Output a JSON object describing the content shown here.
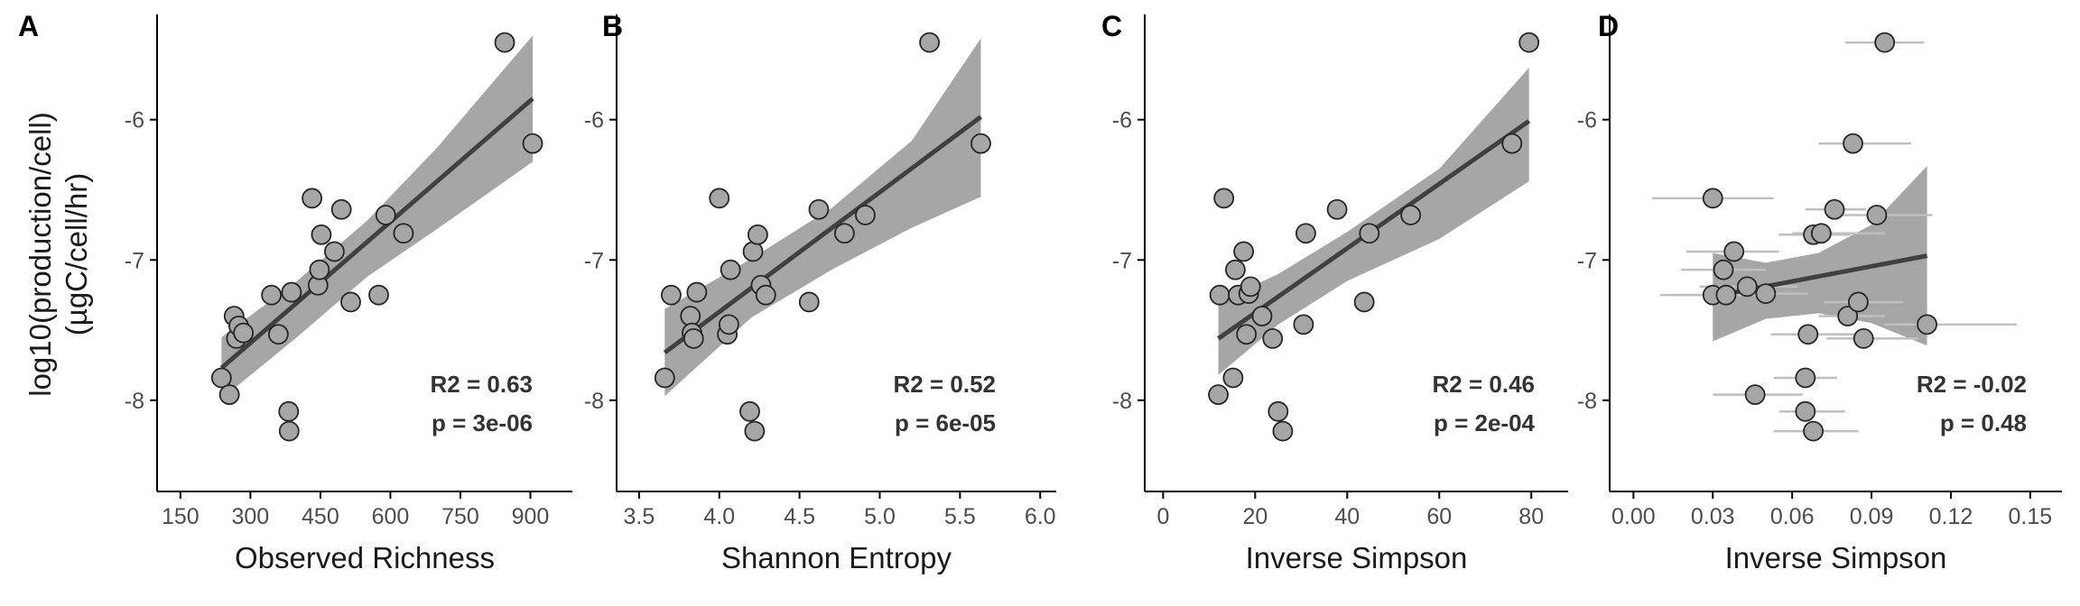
{
  "figure": {
    "ylabel_line1": "log10(production/cell)",
    "ylabel_line2": "(µgC/cell/hr)"
  },
  "colors": {
    "point_fill": "#a6a6a6",
    "point_stroke": "#262626",
    "fit_line": "#404040",
    "ci_band": "#a6a6a6",
    "error_bar": "#bfbfbf",
    "axis": "#000000"
  },
  "chart_data": [
    {
      "type": "scatter",
      "panel": "A",
      "xlabel": "Observed Richness",
      "ylabel": "log10(production/cell) (µgC/cell/hr)",
      "xlim": [
        100,
        990
      ],
      "ylim": [
        -8.65,
        -5.25
      ],
      "xticks": [
        150,
        300,
        450,
        600,
        750,
        900
      ],
      "xtick_labels": [
        "150",
        "300",
        "450",
        "600",
        "750",
        "900"
      ],
      "yticks": [
        -8,
        -7,
        -6
      ],
      "ytick_labels": [
        "-8",
        "-7",
        "-6"
      ],
      "points": [
        {
          "x": 238,
          "y": -7.84
        },
        {
          "x": 255,
          "y": -7.96
        },
        {
          "x": 265,
          "y": -7.4
        },
        {
          "x": 270,
          "y": -7.56
        },
        {
          "x": 275,
          "y": -7.47
        },
        {
          "x": 285,
          "y": -7.52
        },
        {
          "x": 345,
          "y": -7.25
        },
        {
          "x": 360,
          "y": -7.53
        },
        {
          "x": 382,
          "y": -8.08
        },
        {
          "x": 383,
          "y": -8.22
        },
        {
          "x": 388,
          "y": -7.23
        },
        {
          "x": 432,
          "y": -6.56
        },
        {
          "x": 445,
          "y": -7.18
        },
        {
          "x": 448,
          "y": -7.07
        },
        {
          "x": 452,
          "y": -6.82
        },
        {
          "x": 480,
          "y": -6.94
        },
        {
          "x": 495,
          "y": -6.64
        },
        {
          "x": 515,
          "y": -7.3
        },
        {
          "x": 575,
          "y": -7.25
        },
        {
          "x": 590,
          "y": -6.68
        },
        {
          "x": 628,
          "y": -6.81
        },
        {
          "x": 845,
          "y": -5.45
        },
        {
          "x": 905,
          "y": -6.17
        }
      ],
      "fit": {
        "x": [
          238,
          905
        ],
        "y": [
          -7.77,
          -5.85
        ]
      },
      "ci_upper": [
        {
          "x": 238,
          "y": -7.55
        },
        {
          "x": 400,
          "y": -7.15
        },
        {
          "x": 550,
          "y": -6.72
        },
        {
          "x": 700,
          "y": -6.2
        },
        {
          "x": 905,
          "y": -5.4
        }
      ],
      "ci_lower": [
        {
          "x": 238,
          "y": -7.99
        },
        {
          "x": 400,
          "y": -7.55
        },
        {
          "x": 550,
          "y": -7.12
        },
        {
          "x": 700,
          "y": -6.78
        },
        {
          "x": 905,
          "y": -6.3
        }
      ],
      "stats": {
        "r2": "R2 = 0.63",
        "p": "p = 3e-06"
      }
    },
    {
      "type": "scatter",
      "panel": "B",
      "xlabel": "Shannon Entropy",
      "ylabel": "",
      "xlim": [
        3.36,
        6.1
      ],
      "ylim": [
        -8.65,
        -5.25
      ],
      "xticks": [
        3.5,
        4.0,
        4.5,
        5.0,
        5.5,
        6.0
      ],
      "xtick_labels": [
        "3.5",
        "4.0",
        "4.5",
        "5.0",
        "5.5",
        "6.0"
      ],
      "yticks": [
        -8,
        -7,
        -6
      ],
      "ytick_labels": [
        "-8",
        "-7",
        "-6"
      ],
      "points": [
        {
          "x": 3.66,
          "y": -7.84
        },
        {
          "x": 3.7,
          "y": -7.25
        },
        {
          "x": 3.82,
          "y": -7.4
        },
        {
          "x": 3.83,
          "y": -7.52
        },
        {
          "x": 3.84,
          "y": -7.56
        },
        {
          "x": 3.86,
          "y": -7.23
        },
        {
          "x": 4.0,
          "y": -6.56
        },
        {
          "x": 4.05,
          "y": -7.53
        },
        {
          "x": 4.06,
          "y": -7.46
        },
        {
          "x": 4.07,
          "y": -7.07
        },
        {
          "x": 4.19,
          "y": -8.08
        },
        {
          "x": 4.21,
          "y": -6.94
        },
        {
          "x": 4.22,
          "y": -8.22
        },
        {
          "x": 4.24,
          "y": -6.82
        },
        {
          "x": 4.26,
          "y": -7.18
        },
        {
          "x": 4.29,
          "y": -7.25
        },
        {
          "x": 4.56,
          "y": -7.3
        },
        {
          "x": 4.62,
          "y": -6.64
        },
        {
          "x": 4.78,
          "y": -6.81
        },
        {
          "x": 4.91,
          "y": -6.68
        },
        {
          "x": 5.31,
          "y": -5.45
        },
        {
          "x": 5.63,
          "y": -6.17
        }
      ],
      "fit": {
        "x": [
          3.66,
          5.63
        ],
        "y": [
          -7.66,
          -5.98
        ]
      },
      "ci_upper": [
        {
          "x": 3.66,
          "y": -7.35
        },
        {
          "x": 4.2,
          "y": -6.99
        },
        {
          "x": 4.7,
          "y": -6.63
        },
        {
          "x": 5.2,
          "y": -6.15
        },
        {
          "x": 5.63,
          "y": -5.42
        }
      ],
      "ci_lower": [
        {
          "x": 3.66,
          "y": -7.97
        },
        {
          "x": 4.2,
          "y": -7.41
        },
        {
          "x": 4.7,
          "y": -7.07
        },
        {
          "x": 5.2,
          "y": -6.77
        },
        {
          "x": 5.63,
          "y": -6.55
        }
      ],
      "stats": {
        "r2": "R2 = 0.52",
        "p": "p = 6e-05"
      }
    },
    {
      "type": "scatter",
      "panel": "C",
      "xlabel": "Inverse Simpson",
      "ylabel": "",
      "xlim": [
        -4,
        88
      ],
      "ylim": [
        -8.65,
        -5.25
      ],
      "xticks": [
        0,
        20,
        40,
        60,
        80
      ],
      "xtick_labels": [
        "0",
        "20",
        "40",
        "60",
        "80"
      ],
      "yticks": [
        -8,
        -7,
        -6
      ],
      "ytick_labels": [
        "-8",
        "-7",
        "-6"
      ],
      "points": [
        {
          "x": 12.0,
          "y": -7.96
        },
        {
          "x": 12.3,
          "y": -7.25
        },
        {
          "x": 13.2,
          "y": -6.56
        },
        {
          "x": 15.2,
          "y": -7.84
        },
        {
          "x": 15.7,
          "y": -7.07
        },
        {
          "x": 16.3,
          "y": -7.25
        },
        {
          "x": 17.5,
          "y": -6.94
        },
        {
          "x": 18.1,
          "y": -7.53
        },
        {
          "x": 18.6,
          "y": -7.24
        },
        {
          "x": 19.0,
          "y": -7.19
        },
        {
          "x": 21.5,
          "y": -7.4
        },
        {
          "x": 23.8,
          "y": -7.56
        },
        {
          "x": 25.0,
          "y": -8.08
        },
        {
          "x": 26.0,
          "y": -8.22
        },
        {
          "x": 30.5,
          "y": -7.46
        },
        {
          "x": 31.0,
          "y": -6.81
        },
        {
          "x": 37.8,
          "y": -6.64
        },
        {
          "x": 43.7,
          "y": -7.3
        },
        {
          "x": 44.8,
          "y": -6.81
        },
        {
          "x": 53.8,
          "y": -6.68
        },
        {
          "x": 75.8,
          "y": -6.17
        },
        {
          "x": 79.5,
          "y": -5.45
        }
      ],
      "fit": {
        "x": [
          12.0,
          79.5
        ],
        "y": [
          -7.56,
          -6.01
        ]
      },
      "ci_upper": [
        {
          "x": 12.0,
          "y": -7.3
        },
        {
          "x": 25,
          "y": -7.1
        },
        {
          "x": 40,
          "y": -6.8
        },
        {
          "x": 60,
          "y": -6.35
        },
        {
          "x": 79.5,
          "y": -5.63
        }
      ],
      "ci_lower": [
        {
          "x": 12.0,
          "y": -7.82
        },
        {
          "x": 25,
          "y": -7.46
        },
        {
          "x": 40,
          "y": -7.15
        },
        {
          "x": 60,
          "y": -6.85
        },
        {
          "x": 79.5,
          "y": -6.44
        }
      ],
      "stats": {
        "r2": "R2 = 0.46",
        "p": "p = 2e-04"
      }
    },
    {
      "type": "scatter",
      "panel": "D",
      "xlabel": "Inverse Simpson",
      "ylabel": "",
      "xlim": [
        -0.009,
        0.162
      ],
      "ylim": [
        -8.65,
        -5.25
      ],
      "xticks": [
        0.0,
        0.03,
        0.06,
        0.09,
        0.12,
        0.15
      ],
      "xtick_labels": [
        "0.00",
        "0.03",
        "0.06",
        "0.09",
        "0.12",
        "0.15"
      ],
      "yticks": [
        -8,
        -7,
        -6
      ],
      "ytick_labels": [
        "-8",
        "-7",
        "-6"
      ],
      "points": [
        {
          "x": 0.03,
          "y": -6.56,
          "xerr": [
            0.007,
            0.053
          ]
        },
        {
          "x": 0.03,
          "y": -7.25,
          "xerr": [
            0.01,
            0.051
          ]
        },
        {
          "x": 0.034,
          "y": -7.07,
          "xerr": [
            0.018,
            0.05
          ]
        },
        {
          "x": 0.035,
          "y": -7.25,
          "xerr": [
            0.016,
            0.052
          ]
        },
        {
          "x": 0.038,
          "y": -6.94,
          "xerr": [
            0.02,
            0.055
          ]
        },
        {
          "x": 0.043,
          "y": -7.19,
          "xerr": [
            0.025,
            0.062
          ]
        },
        {
          "x": 0.046,
          "y": -7.96,
          "xerr": [
            0.03,
            0.064
          ]
        },
        {
          "x": 0.05,
          "y": -7.24,
          "xerr": [
            0.036,
            0.066
          ]
        },
        {
          "x": 0.065,
          "y": -7.84,
          "xerr": [
            0.053,
            0.077
          ]
        },
        {
          "x": 0.065,
          "y": -8.08,
          "xerr": [
            0.055,
            0.08
          ]
        },
        {
          "x": 0.066,
          "y": -7.53,
          "xerr": [
            0.052,
            0.085
          ]
        },
        {
          "x": 0.068,
          "y": -6.82,
          "xerr": [
            0.055,
            0.082
          ]
        },
        {
          "x": 0.068,
          "y": -8.22,
          "xerr": [
            0.053,
            0.085
          ]
        },
        {
          "x": 0.071,
          "y": -6.81,
          "xerr": [
            0.06,
            0.095
          ]
        },
        {
          "x": 0.076,
          "y": -6.64,
          "xerr": [
            0.065,
            0.088
          ]
        },
        {
          "x": 0.081,
          "y": -7.4,
          "xerr": [
            0.07,
            0.095
          ]
        },
        {
          "x": 0.083,
          "y": -6.17,
          "xerr": [
            0.07,
            0.105
          ]
        },
        {
          "x": 0.085,
          "y": -7.3,
          "xerr": [
            0.072,
            0.102
          ]
        },
        {
          "x": 0.087,
          "y": -7.56,
          "xerr": [
            0.073,
            0.108
          ]
        },
        {
          "x": 0.092,
          "y": -6.68,
          "xerr": [
            0.078,
            0.113
          ]
        },
        {
          "x": 0.095,
          "y": -5.45,
          "xerr": [
            0.08,
            0.11
          ]
        },
        {
          "x": 0.111,
          "y": -7.46,
          "xerr": [
            0.095,
            0.145
          ]
        }
      ],
      "fit": {
        "x": [
          0.03,
          0.111
        ],
        "y": [
          -7.26,
          -6.97
        ]
      },
      "ci_upper": [
        {
          "x": 0.03,
          "y": -6.95
        },
        {
          "x": 0.05,
          "y": -7.02
        },
        {
          "x": 0.07,
          "y": -6.95
        },
        {
          "x": 0.09,
          "y": -6.75
        },
        {
          "x": 0.111,
          "y": -6.33
        }
      ],
      "ci_lower": [
        {
          "x": 0.03,
          "y": -7.58
        },
        {
          "x": 0.05,
          "y": -7.42
        },
        {
          "x": 0.07,
          "y": -7.38
        },
        {
          "x": 0.09,
          "y": -7.45
        },
        {
          "x": 0.111,
          "y": -7.61
        }
      ],
      "stats": {
        "r2": "R2 = -0.02",
        "p": "p = 0.48"
      }
    }
  ]
}
